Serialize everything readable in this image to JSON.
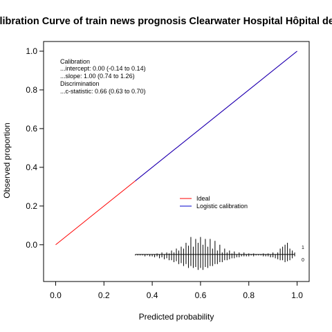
{
  "chart_data": {
    "type": "line",
    "title": "Calibration Curve of train news prognosis Clearwater Hospital Hôpital de la",
    "xlabel": "Predicted probability",
    "ylabel": "Observed proportion",
    "xlim": [
      -0.05,
      1.05
    ],
    "ylim": [
      -0.19,
      1.05
    ],
    "x_ticks": [
      "0.0",
      "0.2",
      "0.4",
      "0.6",
      "0.8",
      "1.0"
    ],
    "y_ticks": [
      "0.0",
      "0.2",
      "0.4",
      "0.6",
      "0.8",
      "1.0"
    ],
    "grid": false,
    "series": [
      {
        "name": "Ideal",
        "color": "#ff0000",
        "x": [
          0,
          1
        ],
        "y": [
          0,
          1
        ]
      },
      {
        "name": "Logistic calibration",
        "color": "#0000cc",
        "x": [
          0.33,
          1.0
        ],
        "y": [
          0.33,
          1.0
        ]
      }
    ],
    "legend": {
      "placement": "center-right",
      "entries": [
        {
          "label": "Ideal",
          "color": "#ff0000"
        },
        {
          "label": "Logistic calibration",
          "color": "#0000cc"
        }
      ]
    },
    "annotation_lines": [
      "Calibration",
      "...intercept: 0.00 (-0.14 to 0.14)",
      "...slope: 1.00 (0.74 to 1.26)",
      "Discrimination",
      "...c-statistic: 0.66 (0.63 to 0.70)"
    ],
    "spike_histogram": {
      "baseline_y": -0.05,
      "label_events": "1",
      "label_nonevents": "0",
      "bins_x": [
        0.33,
        0.34,
        0.35,
        0.36,
        0.37,
        0.38,
        0.39,
        0.4,
        0.41,
        0.42,
        0.43,
        0.44,
        0.45,
        0.46,
        0.47,
        0.48,
        0.49,
        0.5,
        0.51,
        0.52,
        0.53,
        0.54,
        0.55,
        0.56,
        0.57,
        0.58,
        0.59,
        0.6,
        0.61,
        0.62,
        0.63,
        0.64,
        0.65,
        0.66,
        0.67,
        0.68,
        0.69,
        0.7,
        0.71,
        0.72,
        0.73,
        0.74,
        0.75,
        0.76,
        0.77,
        0.78,
        0.79,
        0.8,
        0.81,
        0.82,
        0.83,
        0.84,
        0.85,
        0.86,
        0.87,
        0.88,
        0.89,
        0.9,
        0.91,
        0.92,
        0.93,
        0.94,
        0.95,
        0.96,
        0.97,
        0.98,
        0.99
      ],
      "events_height": [
        0,
        0,
        0,
        0,
        0,
        0,
        0,
        0,
        0,
        0.005,
        0,
        0.01,
        0,
        0.01,
        0.005,
        0.02,
        0.01,
        0.03,
        0.02,
        0.04,
        0.03,
        0.06,
        0.045,
        0.09,
        0.04,
        0.08,
        0.06,
        0.09,
        0.05,
        0.08,
        0.04,
        0.08,
        0.03,
        0.07,
        0.02,
        0.05,
        0.01,
        0.03,
        0.01,
        0.02,
        0.005,
        0.015,
        0,
        0.01,
        0,
        0.01,
        0,
        0.005,
        0,
        0.005,
        0,
        0,
        0,
        0.005,
        0,
        0.005,
        0,
        0.01,
        0,
        0.01,
        0.03,
        0.04,
        0.05,
        0.06,
        0.03,
        0.02,
        0.01
      ],
      "nonevents_height": [
        0.005,
        0.005,
        0.005,
        0.005,
        0.01,
        0.005,
        0.01,
        0.01,
        0.015,
        0.01,
        0.02,
        0.015,
        0.025,
        0.02,
        0.03,
        0.03,
        0.04,
        0.035,
        0.05,
        0.045,
        0.06,
        0.05,
        0.07,
        0.06,
        0.07,
        0.065,
        0.08,
        0.07,
        0.08,
        0.065,
        0.07,
        0.06,
        0.06,
        0.05,
        0.05,
        0.04,
        0.04,
        0.03,
        0.03,
        0.025,
        0.02,
        0.02,
        0.015,
        0.015,
        0.01,
        0.01,
        0.01,
        0.01,
        0.005,
        0.01,
        0.005,
        0.005,
        0.005,
        0.01,
        0.01,
        0.01,
        0.015,
        0.015,
        0.02,
        0.025,
        0.03,
        0.03,
        0.04,
        0.035,
        0.03,
        0.02,
        0.01
      ]
    }
  }
}
